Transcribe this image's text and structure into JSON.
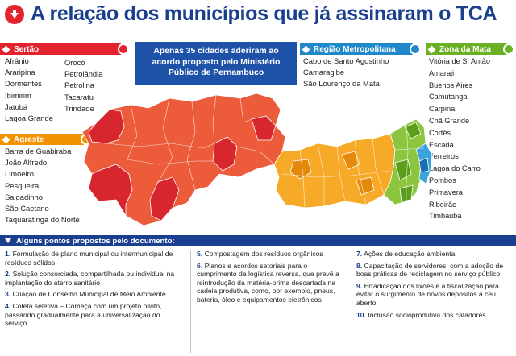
{
  "title": "A relação dos municípios que já assinaram o TCA",
  "callout": "Apenas 35 cidades aderiram ao acordo proposto pelo Ministério Público de Pernambuco",
  "colors": {
    "sertao": "#e3232d",
    "agreste": "#f39200",
    "metropolitana": "#1e88c9",
    "mata": "#6ab023",
    "title": "#1b3f8f"
  },
  "sertao": {
    "label": "Sertão",
    "col1": [
      "Afrânio",
      "Araripina",
      "Dormentes",
      "Ibimirim",
      "Jatobá",
      "Lagoa Grande"
    ],
    "col2": [
      "Orocó",
      "Petrolândia",
      "Petrolina",
      "Tacaratu",
      "Trindade"
    ]
  },
  "agreste": {
    "label": "Agreste",
    "items": [
      "Barra de Guabiraba",
      "João Alfredo",
      "Limoeiro",
      "Pesqueira",
      "Salgadinho",
      "São Caetano",
      "Taquaratinga do Norte"
    ]
  },
  "metropolitana": {
    "label": "Região Metropolitana",
    "items": [
      "Cabo de Santo Agostinho",
      "Camaragibe",
      "São Lourenço da Mata"
    ]
  },
  "mata": {
    "label": "Zona da Mata",
    "items": [
      "Vitória de S. Antão",
      "Amaraji",
      "Buenos Aires",
      "Camutanga",
      "Carpina",
      "Chã Grande",
      "Cortês",
      "Escada",
      "Ferreiros",
      "Lagoa do Carro",
      "Pombos",
      "Primavera",
      "Ribeirão",
      "Timbaúba"
    ]
  },
  "bottom": {
    "header": "Alguns pontos propostos pelo documento:",
    "col1": [
      {
        "num": "1.",
        "text": "Formulação de plano municipal ou intermunicipal de resíduos sólidos"
      },
      {
        "num": "2.",
        "text": "Solução consorciada, compartilhada ou individual na implantação do aterro sanitário"
      },
      {
        "num": "3.",
        "text": "Criação de Conselho Municipal de Meio Ambiente"
      },
      {
        "num": "4.",
        "text": "Coleta seletiva – Começa com um projeto piloto, passando gradualmente para a universalização do serviço"
      }
    ],
    "col2": [
      {
        "num": "5.",
        "text": "Compostagem dos resíduos orgânicos"
      },
      {
        "num": "6.",
        "text": "Planos e acordos setoriais para o cumprimento da logística reversa, que prevê a reintrodução da matéria-prima descartada na cadeia produtiva, como, por exemplo, pneus, bateria, óleo e equipamentos eletrônicos"
      }
    ],
    "col3": [
      {
        "num": "7.",
        "text": "Ações de educação ambiental"
      },
      {
        "num": "8.",
        "text": "Capacitação de servidores, com a adoção de boas práticas de reciclagem no serviço público"
      },
      {
        "num": "9.",
        "text": "Erradicação dos lixões e a fiscalização para evitar o surgimento de novos depósitos a céu aberto"
      },
      {
        "num": "10.",
        "text": "Inclusão socioprodutiva dos catadores"
      }
    ]
  }
}
